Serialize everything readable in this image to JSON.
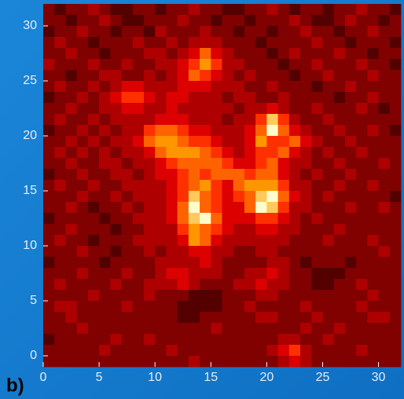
{
  "chart_data": {
    "type": "heatmap",
    "panel_label": "b)",
    "xlim": [
      0,
      32
    ],
    "ylim": [
      -1,
      32
    ],
    "xticks": [
      0,
      5,
      10,
      15,
      20,
      25,
      30
    ],
    "yticks": [
      0,
      5,
      10,
      15,
      20,
      25,
      30
    ],
    "colormap": "hot",
    "clim": [
      0,
      9
    ],
    "z": [
      [
        2,
        1,
        2,
        2,
        3,
        2,
        1,
        1,
        2,
        2,
        1,
        2,
        2,
        3,
        2,
        2,
        1,
        1,
        2,
        2,
        3,
        2,
        1,
        2,
        2,
        1,
        2,
        2,
        3,
        2,
        2,
        1
      ],
      [
        2,
        2,
        1,
        2,
        2,
        3,
        2,
        1,
        1,
        2,
        2,
        2,
        3,
        2,
        2,
        1,
        2,
        2,
        1,
        2,
        2,
        2,
        3,
        2,
        1,
        1,
        2,
        3,
        2,
        2,
        1,
        2
      ],
      [
        1,
        2,
        2,
        3,
        2,
        2,
        1,
        2,
        2,
        1,
        3,
        2,
        2,
        2,
        3,
        2,
        2,
        1,
        2,
        2,
        1,
        2,
        2,
        3,
        2,
        2,
        1,
        2,
        2,
        3,
        2,
        2
      ],
      [
        2,
        3,
        2,
        2,
        1,
        2,
        2,
        2,
        3,
        2,
        2,
        3,
        2,
        3,
        3,
        3,
        2,
        2,
        2,
        1,
        2,
        2,
        2,
        2,
        3,
        2,
        2,
        1,
        2,
        2,
        2,
        1
      ],
      [
        2,
        2,
        3,
        2,
        2,
        1,
        2,
        2,
        2,
        3,
        3,
        2,
        3,
        4,
        6,
        4,
        3,
        2,
        2,
        2,
        1,
        2,
        3,
        2,
        2,
        2,
        3,
        2,
        2,
        1,
        2,
        2
      ],
      [
        3,
        2,
        2,
        2,
        3,
        2,
        2,
        3,
        2,
        2,
        3,
        3,
        4,
        5,
        7,
        5,
        3,
        3,
        2,
        2,
        2,
        1,
        2,
        2,
        3,
        2,
        2,
        2,
        3,
        2,
        2,
        1
      ],
      [
        2,
        2,
        1,
        2,
        2,
        3,
        3,
        2,
        2,
        3,
        2,
        3,
        4,
        6,
        5,
        4,
        3,
        2,
        3,
        2,
        2,
        2,
        1,
        2,
        2,
        3,
        2,
        2,
        2,
        3,
        2,
        2
      ],
      [
        2,
        3,
        2,
        2,
        3,
        2,
        3,
        4,
        4,
        3,
        3,
        3,
        4,
        4,
        4,
        3,
        3,
        3,
        2,
        2,
        3,
        2,
        2,
        2,
        1,
        2,
        2,
        3,
        2,
        2,
        2,
        2
      ],
      [
        1,
        2,
        2,
        3,
        2,
        3,
        4,
        5,
        5,
        4,
        3,
        4,
        4,
        3,
        3,
        3,
        2,
        3,
        3,
        2,
        2,
        3,
        2,
        2,
        2,
        2,
        1,
        2,
        2,
        3,
        2,
        2
      ],
      [
        2,
        2,
        3,
        2,
        2,
        3,
        3,
        4,
        4,
        3,
        3,
        4,
        3,
        3,
        3,
        3,
        3,
        2,
        3,
        3,
        4,
        3,
        2,
        2,
        3,
        2,
        2,
        2,
        3,
        2,
        1,
        2
      ],
      [
        2,
        3,
        2,
        2,
        3,
        2,
        3,
        3,
        3,
        3,
        4,
        4,
        4,
        3,
        3,
        3,
        2,
        3,
        3,
        5,
        8,
        5,
        3,
        2,
        2,
        3,
        2,
        2,
        2,
        2,
        2,
        2
      ],
      [
        1,
        2,
        2,
        3,
        2,
        3,
        2,
        3,
        3,
        5,
        6,
        6,
        5,
        4,
        4,
        3,
        3,
        3,
        4,
        6,
        9,
        6,
        4,
        3,
        2,
        2,
        3,
        2,
        2,
        3,
        2,
        1
      ],
      [
        2,
        2,
        3,
        2,
        3,
        2,
        3,
        3,
        4,
        6,
        7,
        7,
        6,
        5,
        5,
        4,
        3,
        3,
        4,
        7,
        5,
        5,
        6,
        4,
        3,
        2,
        2,
        3,
        2,
        2,
        2,
        2
      ],
      [
        2,
        3,
        2,
        3,
        2,
        3,
        2,
        3,
        3,
        4,
        6,
        7,
        7,
        7,
        6,
        5,
        4,
        3,
        4,
        5,
        5,
        6,
        4,
        3,
        2,
        3,
        2,
        2,
        3,
        2,
        2,
        2
      ],
      [
        2,
        2,
        3,
        2,
        2,
        3,
        3,
        2,
        3,
        3,
        4,
        5,
        6,
        6,
        6,
        6,
        5,
        4,
        4,
        5,
        6,
        4,
        3,
        3,
        2,
        2,
        3,
        2,
        2,
        2,
        3,
        2
      ],
      [
        1,
        2,
        2,
        3,
        2,
        2,
        3,
        3,
        2,
        3,
        4,
        4,
        5,
        6,
        5,
        6,
        6,
        6,
        5,
        6,
        6,
        4,
        3,
        2,
        3,
        2,
        2,
        3,
        2,
        2,
        2,
        2
      ],
      [
        2,
        3,
        2,
        2,
        3,
        2,
        2,
        3,
        3,
        3,
        3,
        4,
        5,
        6,
        7,
        5,
        4,
        6,
        7,
        7,
        7,
        5,
        3,
        3,
        2,
        2,
        3,
        2,
        2,
        3,
        2,
        2
      ],
      [
        2,
        2,
        2,
        3,
        2,
        2,
        3,
        2,
        3,
        3,
        3,
        4,
        5,
        8,
        6,
        5,
        4,
        5,
        6,
        8,
        9,
        6,
        4,
        3,
        2,
        3,
        2,
        2,
        2,
        2,
        2,
        1
      ],
      [
        2,
        2,
        3,
        2,
        1,
        2,
        2,
        3,
        2,
        3,
        3,
        4,
        6,
        9,
        6,
        5,
        4,
        4,
        6,
        9,
        8,
        5,
        3,
        3,
        2,
        2,
        2,
        3,
        2,
        2,
        3,
        2
      ],
      [
        1,
        2,
        2,
        2,
        2,
        1,
        2,
        2,
        3,
        3,
        3,
        4,
        6,
        8,
        9,
        6,
        4,
        4,
        4,
        5,
        5,
        4,
        3,
        2,
        3,
        2,
        2,
        2,
        2,
        2,
        2,
        2
      ],
      [
        2,
        2,
        3,
        2,
        2,
        2,
        1,
        2,
        2,
        3,
        3,
        3,
        5,
        7,
        6,
        5,
        4,
        3,
        3,
        4,
        4,
        3,
        3,
        2,
        2,
        2,
        3,
        2,
        2,
        2,
        2,
        2
      ],
      [
        2,
        3,
        2,
        2,
        1,
        2,
        2,
        2,
        3,
        3,
        3,
        3,
        4,
        7,
        6,
        4,
        3,
        3,
        3,
        3,
        3,
        3,
        2,
        2,
        2,
        3,
        2,
        2,
        2,
        3,
        2,
        2
      ],
      [
        2,
        2,
        2,
        3,
        2,
        2,
        1,
        2,
        2,
        3,
        2,
        3,
        3,
        4,
        4,
        3,
        3,
        2,
        2,
        3,
        3,
        2,
        2,
        2,
        2,
        2,
        2,
        2,
        2,
        2,
        3,
        2
      ],
      [
        1,
        2,
        2,
        2,
        2,
        1,
        2,
        2,
        2,
        2,
        3,
        3,
        3,
        3,
        4,
        3,
        2,
        2,
        2,
        2,
        3,
        3,
        2,
        1,
        2,
        2,
        2,
        1,
        2,
        2,
        2,
        2
      ],
      [
        2,
        2,
        2,
        3,
        2,
        2,
        2,
        3,
        2,
        2,
        3,
        4,
        4,
        3,
        3,
        3,
        2,
        2,
        3,
        3,
        4,
        3,
        2,
        2,
        1,
        1,
        1,
        2,
        2,
        2,
        2,
        2
      ],
      [
        2,
        3,
        2,
        2,
        2,
        2,
        3,
        2,
        2,
        3,
        3,
        3,
        4,
        3,
        2,
        2,
        2,
        3,
        3,
        4,
        3,
        3,
        2,
        2,
        1,
        1,
        2,
        2,
        3,
        2,
        2,
        2
      ],
      [
        2,
        2,
        2,
        2,
        3,
        2,
        2,
        2,
        2,
        3,
        2,
        2,
        2,
        1,
        1,
        1,
        2,
        2,
        2,
        3,
        3,
        2,
        2,
        2,
        2,
        2,
        2,
        2,
        2,
        3,
        2,
        2
      ],
      [
        2,
        3,
        3,
        2,
        2,
        2,
        2,
        3,
        2,
        2,
        2,
        2,
        1,
        1,
        1,
        1,
        2,
        2,
        3,
        2,
        2,
        2,
        2,
        3,
        2,
        2,
        2,
        2,
        3,
        2,
        2,
        2
      ],
      [
        2,
        2,
        3,
        2,
        2,
        2,
        2,
        2,
        2,
        2,
        2,
        2,
        1,
        1,
        2,
        2,
        2,
        2,
        2,
        3,
        3,
        2,
        2,
        2,
        3,
        2,
        2,
        2,
        2,
        3,
        3,
        2
      ],
      [
        2,
        2,
        2,
        3,
        2,
        2,
        2,
        2,
        2,
        2,
        2,
        2,
        2,
        2,
        2,
        3,
        2,
        2,
        2,
        2,
        2,
        2,
        2,
        3,
        2,
        2,
        3,
        2,
        2,
        2,
        2,
        2
      ],
      [
        1,
        2,
        2,
        2,
        2,
        2,
        3,
        2,
        2,
        3,
        2,
        2,
        2,
        2,
        2,
        2,
        2,
        2,
        2,
        2,
        2,
        3,
        3,
        2,
        2,
        3,
        2,
        2,
        2,
        2,
        2,
        2
      ],
      [
        2,
        2,
        2,
        2,
        2,
        3,
        2,
        2,
        2,
        2,
        2,
        3,
        2,
        2,
        2,
        2,
        2,
        2,
        2,
        2,
        3,
        4,
        5,
        3,
        2,
        2,
        2,
        2,
        3,
        2,
        2,
        2
      ],
      [
        2,
        2,
        2,
        2,
        2,
        2,
        2,
        2,
        2,
        2,
        2,
        2,
        2,
        3,
        2,
        2,
        2,
        2,
        2,
        2,
        2,
        3,
        4,
        3,
        2,
        2,
        2,
        2,
        2,
        2,
        2,
        2
      ]
    ]
  }
}
